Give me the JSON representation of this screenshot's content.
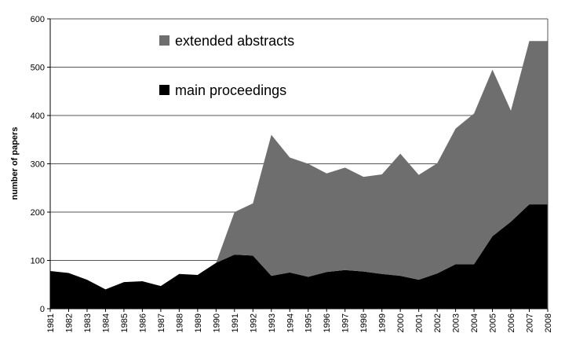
{
  "chart_data": {
    "type": "area",
    "stacked": true,
    "title": "",
    "xlabel": "",
    "ylabel": "number of papers",
    "ylim": [
      0,
      600
    ],
    "yticks": [
      0,
      100,
      200,
      300,
      400,
      500,
      600
    ],
    "grid": true,
    "legend_position": "upper-left inside plot",
    "categories": [
      "1981",
      "1982",
      "1983",
      "1984",
      "1985",
      "1986",
      "1987",
      "1988",
      "1989",
      "1990",
      "1991",
      "1992",
      "1993",
      "1994",
      "1995",
      "1996",
      "1997",
      "1998",
      "1999",
      "2000",
      "2001",
      "2002",
      "2003",
      "2004",
      "2005",
      "2006",
      "2007",
      "2008"
    ],
    "series": [
      {
        "name": "main proceedings",
        "color": "#000000",
        "values": [
          78,
          74,
          60,
          40,
          55,
          57,
          47,
          72,
          70,
          95,
          112,
          110,
          68,
          75,
          66,
          76,
          80,
          77,
          72,
          68,
          60,
          73,
          92,
          92,
          150,
          180,
          216,
          216
        ]
      },
      {
        "name": "extended abstracts",
        "color": "#6e6e6e",
        "values": [
          0,
          0,
          0,
          0,
          0,
          0,
          0,
          0,
          0,
          0,
          88,
          108,
          292,
          238,
          234,
          204,
          212,
          196,
          206,
          253,
          217,
          228,
          281,
          312,
          345,
          230,
          338,
          338
        ]
      }
    ]
  }
}
